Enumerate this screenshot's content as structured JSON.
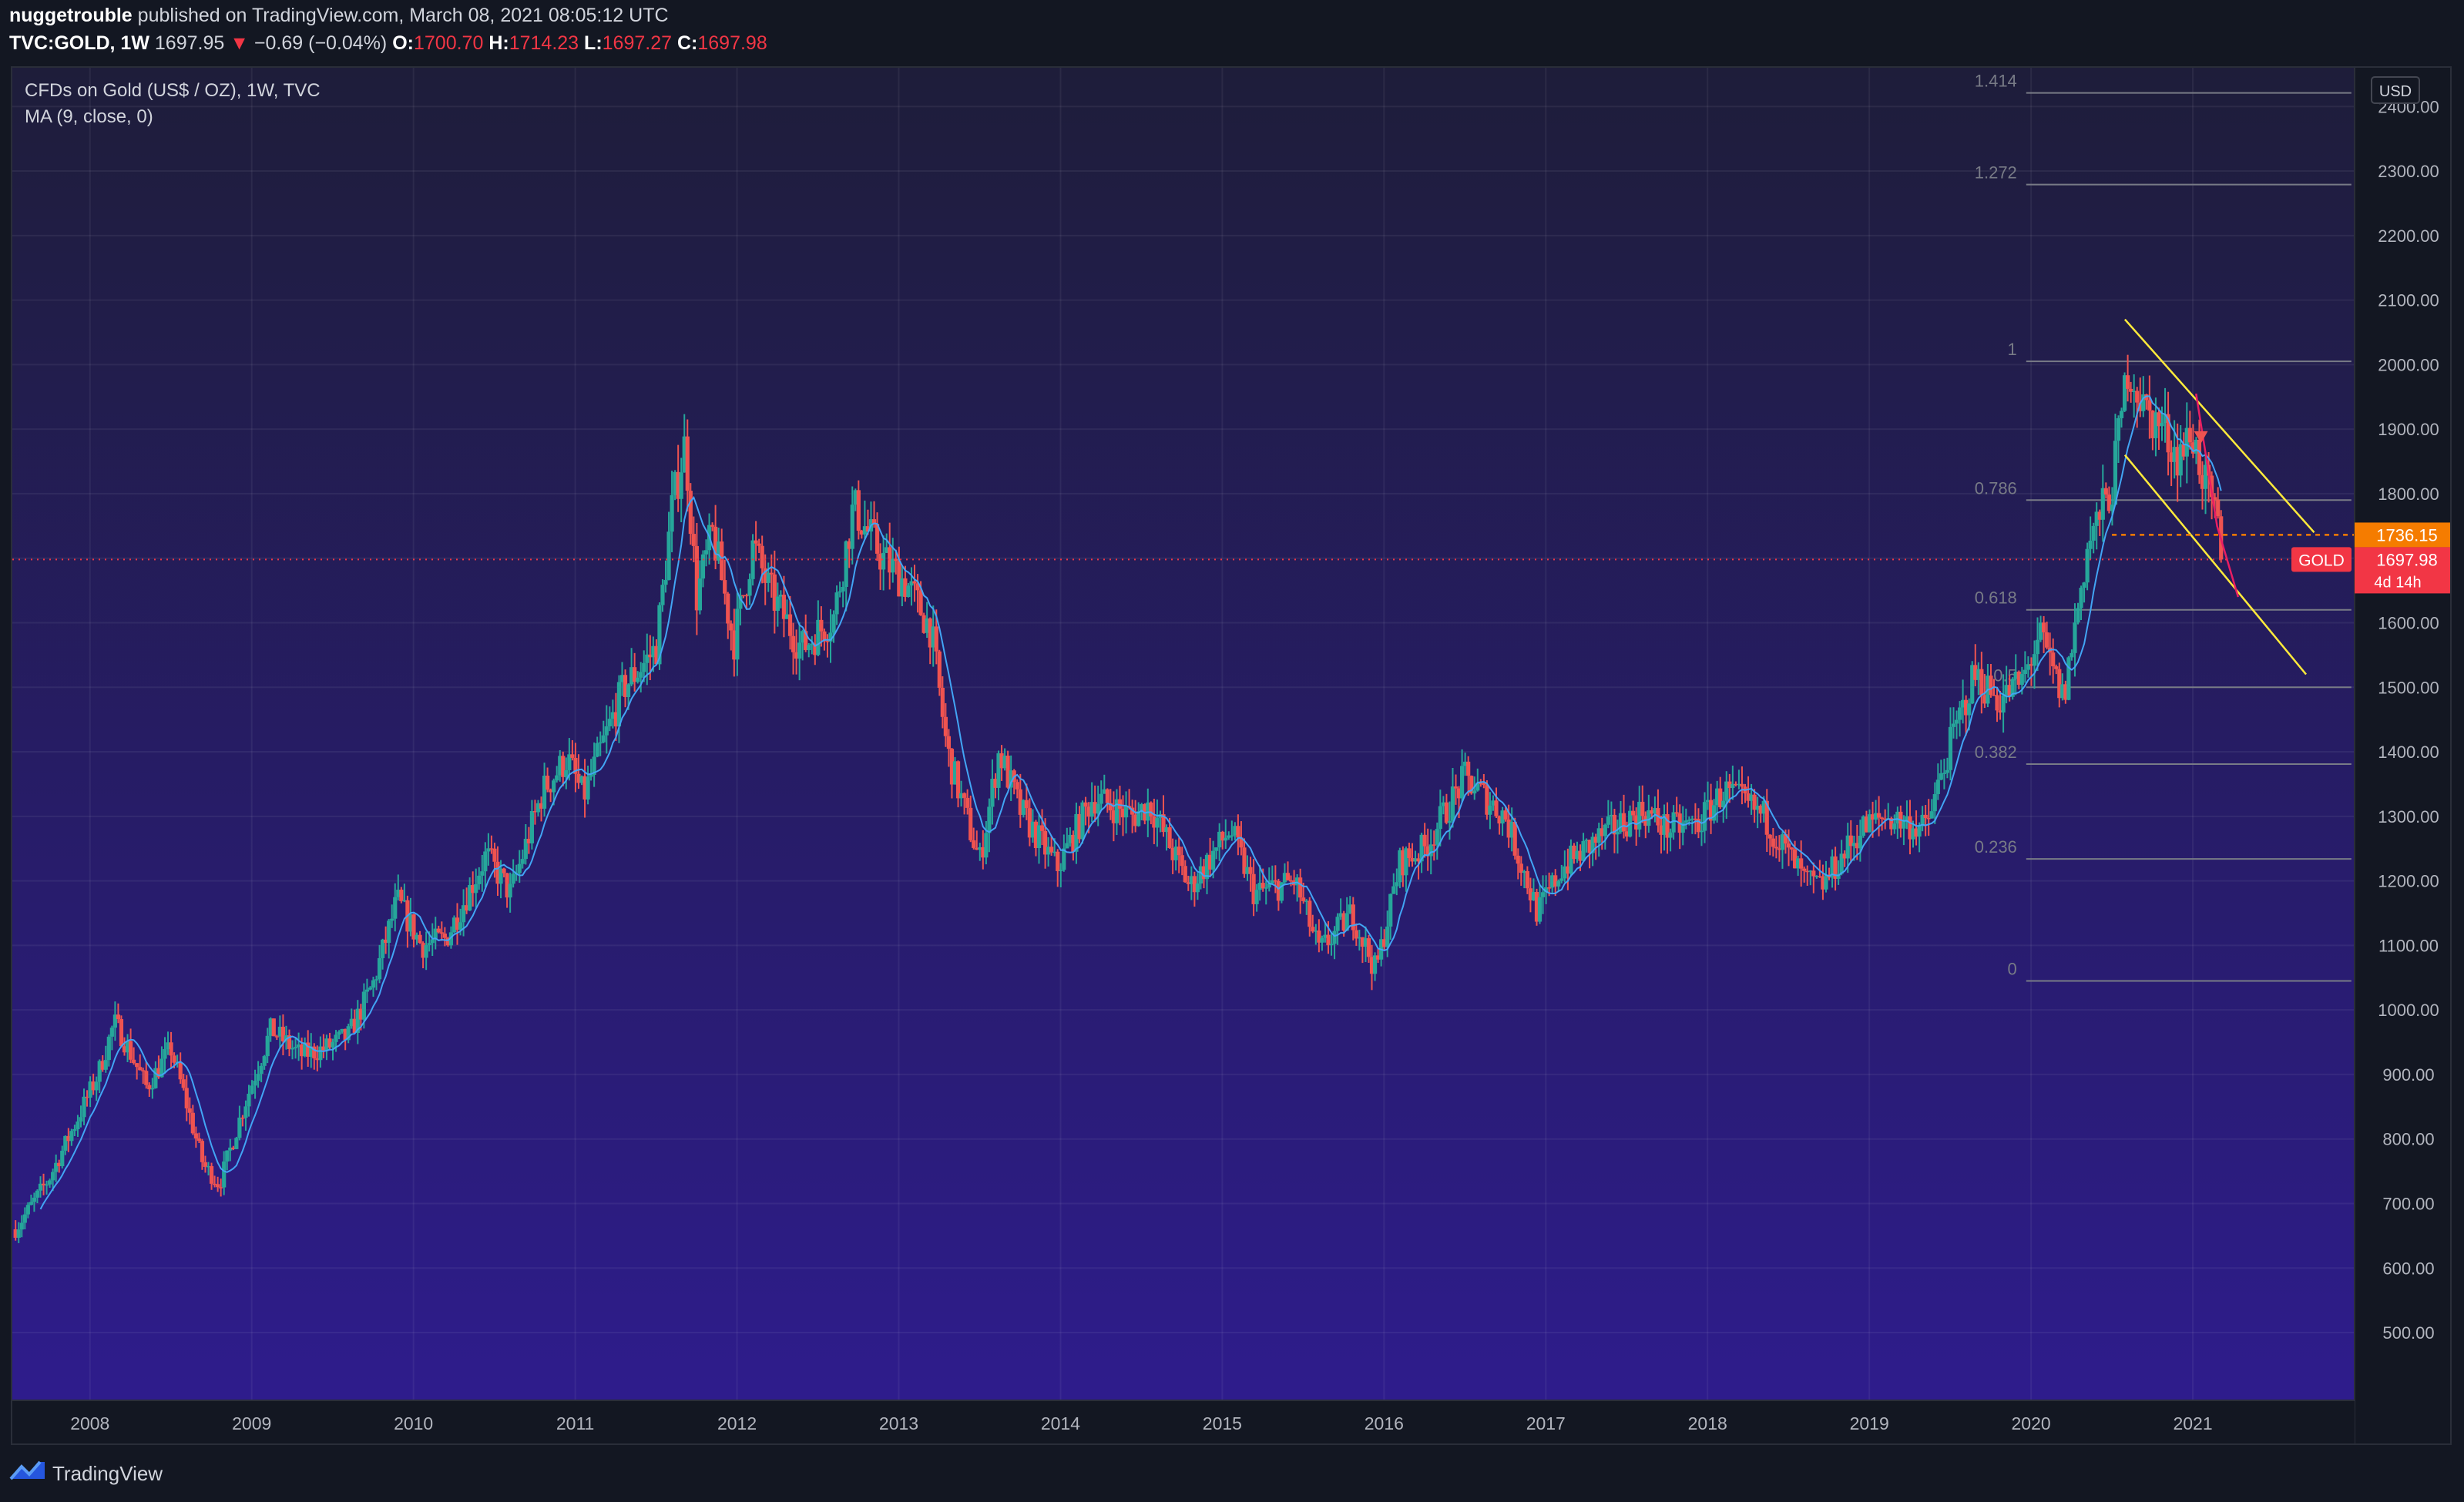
{
  "header": {
    "author": "nuggetrouble",
    "published_text": "published on TradingView.com, March 08, 2021 08:05:12 UTC",
    "symbol": "TVC:GOLD, 1W",
    "last": "1697.95",
    "change": "−0.69 (−0.04%)",
    "o_label": "O:",
    "o_value": "1700.70",
    "h_label": "H:",
    "h_value": "1714.23",
    "l_label": "L:",
    "l_value": "1697.27",
    "c_label": "C:",
    "c_value": "1697.98"
  },
  "legend": {
    "title": "CFDs on Gold (US$ / OZ), 1W, TVC",
    "indicator": "MA (9, close, 0)"
  },
  "footer": {
    "brand": "TradingView"
  },
  "colors": {
    "bg_top": "#1e1d3a",
    "bg_bottom": "#2e1c8c",
    "up": "#26a69a",
    "down": "#ef5350",
    "ma": "#42a5f5",
    "channel": "#ffeb3b",
    "fib": "#787b86",
    "label_orange": "#f57c00",
    "label_red": "#f23645",
    "pink": "#e91e63"
  },
  "chart_data": {
    "type": "candlestick",
    "symbol": "GOLD",
    "currency": "USD",
    "x_ticks": [
      "2008",
      "2009",
      "2010",
      "2011",
      "2012",
      "2013",
      "2014",
      "2015",
      "2016",
      "2017",
      "2018",
      "2019",
      "2020",
      "2021"
    ],
    "y_ticks": [
      "2400.00",
      "2300.00",
      "2200.00",
      "2100.00",
      "2000.00",
      "1900.00",
      "1800.00",
      "1700.00",
      "1600.00",
      "1500.00",
      "1400.00",
      "1300.00",
      "1200.00",
      "1100.00",
      "1000.00",
      "900.00",
      "800.00",
      "700.00",
      "600.00",
      "500.00"
    ],
    "ylim": [
      395,
      2460
    ],
    "xlim": [
      2007.52,
      2022.0
    ],
    "price_anchors": [
      [
        2007.54,
        660
      ],
      [
        2007.75,
        740
      ],
      [
        2007.92,
        830
      ],
      [
        2008.05,
        900
      ],
      [
        2008.15,
        980
      ],
      [
        2008.2,
        960
      ],
      [
        2008.35,
        880
      ],
      [
        2008.5,
        940
      ],
      [
        2008.58,
        870
      ],
      [
        2008.7,
        760
      ],
      [
        2008.8,
        730
      ],
      [
        2008.95,
        850
      ],
      [
        2009.12,
        970
      ],
      [
        2009.3,
        930
      ],
      [
        2009.45,
        940
      ],
      [
        2009.6,
        960
      ],
      [
        2009.75,
        1040
      ],
      [
        2009.9,
        1170
      ],
      [
        2010.05,
        1100
      ],
      [
        2010.2,
        1110
      ],
      [
        2010.45,
        1240
      ],
      [
        2010.6,
        1180
      ],
      [
        2010.8,
        1340
      ],
      [
        2010.95,
        1390
      ],
      [
        2011.05,
        1330
      ],
      [
        2011.3,
        1500
      ],
      [
        2011.5,
        1560
      ],
      [
        2011.6,
        1780
      ],
      [
        2011.68,
        1880
      ],
      [
        2011.75,
        1640
      ],
      [
        2011.85,
        1740
      ],
      [
        2011.98,
        1570
      ],
      [
        2012.1,
        1720
      ],
      [
        2012.2,
        1650
      ],
      [
        2012.4,
        1560
      ],
      [
        2012.6,
        1610
      ],
      [
        2012.72,
        1780
      ],
      [
        2012.9,
        1700
      ],
      [
        2013.05,
        1660
      ],
      [
        2013.2,
        1590
      ],
      [
        2013.3,
        1400
      ],
      [
        2013.5,
        1230
      ],
      [
        2013.62,
        1400
      ],
      [
        2013.75,
        1310
      ],
      [
        2013.98,
        1220
      ],
      [
        2014.2,
        1330
      ],
      [
        2014.45,
        1300
      ],
      [
        2014.55,
        1320
      ],
      [
        2014.8,
        1190
      ],
      [
        2015.05,
        1280
      ],
      [
        2015.2,
        1180
      ],
      [
        2015.45,
        1200
      ],
      [
        2015.6,
        1090
      ],
      [
        2015.8,
        1150
      ],
      [
        2015.95,
        1060
      ],
      [
        2016.1,
        1230
      ],
      [
        2016.25,
        1250
      ],
      [
        2016.5,
        1360
      ],
      [
        2016.75,
        1300
      ],
      [
        2016.95,
        1150
      ],
      [
        2017.1,
        1220
      ],
      [
        2017.35,
        1270
      ],
      [
        2017.6,
        1310
      ],
      [
        2017.75,
        1280
      ],
      [
        2017.95,
        1290
      ],
      [
        2018.1,
        1340
      ],
      [
        2018.35,
        1300
      ],
      [
        2018.6,
        1200
      ],
      [
        2018.7,
        1190
      ],
      [
        2018.95,
        1280
      ],
      [
        2019.1,
        1300
      ],
      [
        2019.35,
        1280
      ],
      [
        2019.5,
        1410
      ],
      [
        2019.65,
        1520
      ],
      [
        2019.8,
        1480
      ],
      [
        2019.95,
        1510
      ],
      [
        2020.05,
        1580
      ],
      [
        2020.2,
        1480
      ],
      [
        2020.35,
        1720
      ],
      [
        2020.5,
        1810
      ],
      [
        2020.6,
        2000
      ],
      [
        2020.7,
        1930
      ],
      [
        2020.82,
        1900
      ],
      [
        2020.9,
        1860
      ],
      [
        2021.0,
        1890
      ],
      [
        2021.08,
        1810
      ],
      [
        2021.16,
        1740
      ],
      [
        2021.18,
        1698
      ]
    ],
    "last_price": "1697.98",
    "last_label": "GOLD",
    "countdown": "4d 14h",
    "alert_price": "1736.15",
    "moving_average": {
      "type": "MA",
      "length": 9
    },
    "fibonacci": {
      "levels": [
        "1.414",
        "1.272",
        "1",
        "0.786",
        "0.618",
        "0.5",
        "0.382",
        "0.236",
        "0"
      ],
      "level_prices": [
        2421,
        2279,
        2005,
        1790,
        1620,
        1500,
        1381,
        1234,
        1045
      ]
    },
    "channel": {
      "upper": [
        [
          2020.58,
          2070
        ],
        [
          2021.75,
          1740
        ]
      ],
      "lower": [
        [
          2020.58,
          1860
        ],
        [
          2021.7,
          1520
        ]
      ]
    }
  }
}
